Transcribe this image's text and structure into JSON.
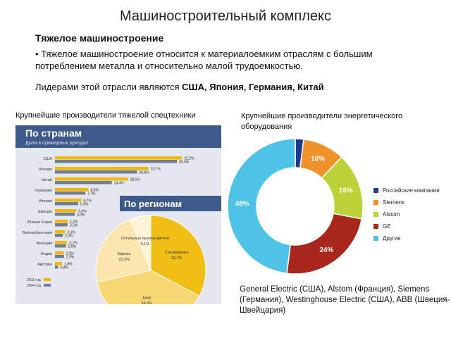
{
  "slide": {
    "title": "Машиностроительный комплекс",
    "subhead": "Тяжелое машиностроение",
    "bullet": "•  Тяжелое машиностроение относится к материалоемким отраслям с большим потреблением металла и относительно малой трудоемкостью.",
    "leaders_prefix": "Лидерами этой отрасли являются ",
    "leaders_names": "США, Япония, Германия, Китай",
    "caption_left": "Крупнейшие производители тяжелой спецтехники",
    "caption_right": "Крупнейшие производители энергетического оборудования",
    "companies": "General Electric (США), Alstom (Франция), Siemens (Германия), Westinghouse Electric (США), ABB (Швеция-Швейцария)"
  },
  "chart_data": [
    {
      "type": "bar",
      "title": "По странам",
      "subtitle": "Доля в суммарных доходах",
      "categories": [
        "США",
        "Япония",
        "Китай",
        "Германия",
        "Италия",
        "Швеция",
        "Южная Корея",
        "Великобритания",
        "Франция",
        "Индия",
        "Австрия"
      ],
      "series": [
        {
          "values": [
            32.2,
            23.7,
            18.5,
            8.5,
            6.7,
            5.4,
            3.2,
            2.6,
            3.1,
            2.2,
            1.8
          ]
        },
        {
          "values": [
            30.9,
            20.8,
            14.4,
            7.7,
            5.9,
            5.0,
            3.2,
            2.0,
            2.8,
            2.3,
            0.8
          ]
        }
      ],
      "legend": [
        "2011 год",
        "2004 год"
      ],
      "ylim": [
        0,
        35
      ]
    },
    {
      "type": "pie",
      "title": "По регионам",
      "labels": [
        "Сев.Америка",
        "Азия",
        "Европа",
        "Остальные производители"
      ],
      "values": [
        32.7,
        38.8,
        22.3,
        6.1
      ],
      "colors": [
        "#f0be14",
        "#f7d774",
        "#fbe7ae",
        "#fdf3d6"
      ]
    },
    {
      "type": "pie",
      "labels": [
        "Российские компании",
        "Siemens",
        "Alstom",
        "GE",
        "Другие"
      ],
      "values": [
        2,
        10,
        16,
        24,
        48
      ],
      "colors": [
        "#1f3a8a",
        "#f0922a",
        "#bcd236",
        "#a8261c",
        "#4ec3e8"
      ]
    }
  ]
}
